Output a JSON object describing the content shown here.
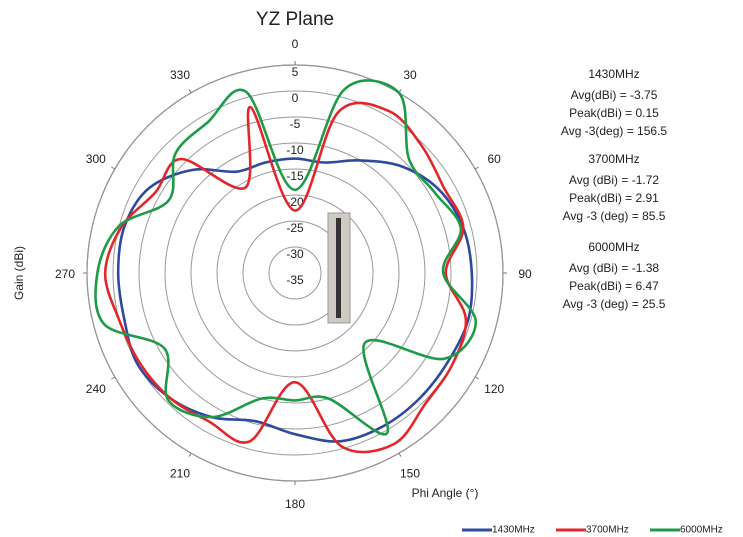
{
  "chart_data": {
    "type": "polar-line",
    "title": "YZ Plane",
    "theta": [
      0,
      15,
      30,
      45,
      60,
      75,
      90,
      105,
      120,
      135,
      150,
      165,
      180,
      195,
      210,
      225,
      240,
      255,
      270,
      285,
      300,
      315,
      330,
      345
    ],
    "angular_ticks": [
      0,
      30,
      60,
      90,
      120,
      150,
      180,
      210,
      240,
      270,
      300,
      330
    ],
    "rlim": [
      -35,
      5
    ],
    "rticks": [
      -35,
      -30,
      -25,
      -20,
      -15,
      -10,
      -5,
      0,
      5
    ],
    "r_label": "Gain (dBi)",
    "theta_label": "Phi Angle (°)",
    "series": [
      {
        "name": "1430MHz",
        "color": "#2e4a9e",
        "values": [
          -13,
          -13,
          -10,
          -6,
          -3,
          -1.5,
          -1,
          -0.5,
          -1,
          -1,
          -1,
          -1.5,
          -4,
          -5.5,
          -3,
          -1,
          0,
          -1,
          -1,
          -1,
          -2.5,
          -7,
          -12.5,
          -13
        ]
      },
      {
        "name": "3700MHz",
        "color": "#e3262b",
        "values": [
          -23,
          -3,
          1,
          -0.5,
          -2,
          -1.5,
          -6,
          -1,
          0,
          0.5,
          3,
          -0.5,
          -14,
          -1.5,
          -2,
          -1,
          -0.5,
          0,
          1.5,
          -0.5,
          -4,
          -4,
          -16,
          -2
        ]
      },
      {
        "name": "6000MHz",
        "color": "#1e9a48",
        "values": [
          -19,
          1.5,
          5,
          -4,
          -4,
          -2,
          -6.5,
          1,
          -2,
          -16,
          0.5,
          -10,
          -10.5,
          -10,
          -3,
          -0.5,
          -6,
          3,
          3,
          0,
          -7,
          -2.5,
          -1.5,
          1
        ]
      }
    ],
    "annotations": [
      [
        "1430MHz",
        "Avg(dBi) = -3.75",
        "Peak(dBi) = 0.15",
        "Avg -3(deg) = 156.5"
      ],
      [
        "3700MHz",
        "Avg (dBi) = -1.72",
        "Peak(dBi) = 2.91",
        "Avg -3 (deg) = 85.5"
      ],
      [
        "6000MHz",
        "Avg (dBi) = -1.38",
        "Peak(dBi) = 6.47",
        "Avg -3 (deg) = 25.5"
      ]
    ]
  }
}
